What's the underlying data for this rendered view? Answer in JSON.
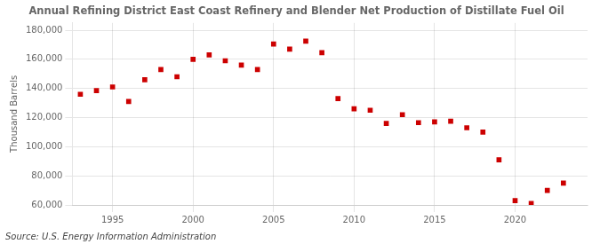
{
  "chart_data": {
    "type": "scatter",
    "title": "Annual Refining District East Coast Refinery and Blender Net Production of Distillate Fuel Oil",
    "ylabel": "Thousand Barrels",
    "annotations": [
      "Source: U.S. Energy Information Administration"
    ],
    "x": [
      1993,
      1994,
      1995,
      1996,
      1997,
      1998,
      1999,
      2000,
      2001,
      2002,
      2003,
      2004,
      2005,
      2006,
      2007,
      2008,
      2009,
      2010,
      2011,
      2012,
      2013,
      2014,
      2015,
      2016,
      2017,
      2018,
      2019,
      2020,
      2021,
      2022,
      2023
    ],
    "values": [
      136000,
      138500,
      141000,
      131000,
      146000,
      153000,
      148000,
      160000,
      163000,
      159000,
      156000,
      153000,
      170500,
      167000,
      172500,
      164500,
      133000,
      126000,
      125000,
      116000,
      122000,
      116500,
      117000,
      117500,
      113000,
      110000,
      91000,
      63000,
      61000,
      70000,
      75000
    ],
    "color": "#cc0000",
    "marker": "square",
    "xlim": [
      1992.5,
      2024.5
    ],
    "xticks": [
      1995,
      2000,
      2005,
      2010,
      2015,
      2020
    ],
    "ylim": [
      60000,
      185000
    ],
    "yticks": [
      {
        "value": 60000,
        "label": "60,000"
      },
      {
        "value": 80000,
        "label": "80,000"
      },
      {
        "value": 100000,
        "label": "100,000"
      },
      {
        "value": 120000,
        "label": "120,000"
      },
      {
        "value": 140000,
        "label": "140,000"
      },
      {
        "value": 160000,
        "label": "160,000"
      },
      {
        "value": 180000,
        "label": "180,000"
      }
    ],
    "grid": true
  }
}
